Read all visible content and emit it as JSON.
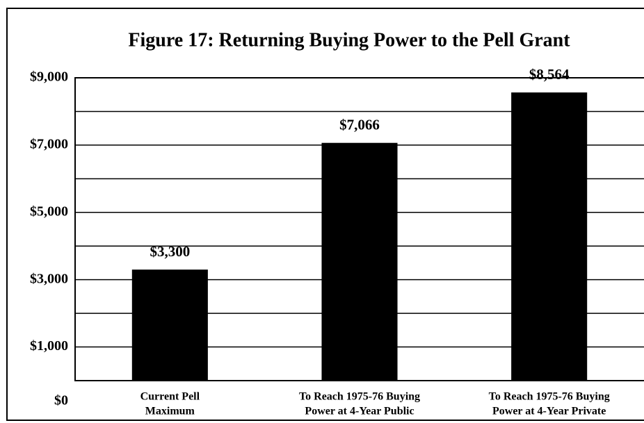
{
  "chart_data": {
    "type": "bar",
    "title": "Figure 17: Returning Buying Power to the Pell Grant",
    "categories": [
      [
        "Current Pell",
        "Maximum"
      ],
      [
        "To Reach 1975-76 Buying",
        "Power at 4-Year Public"
      ],
      [
        "To Reach 1975-76 Buying",
        "Power at 4-Year Private"
      ]
    ],
    "values": [
      3300,
      7066,
      8564
    ],
    "value_labels": [
      "$3,300",
      "$7,066",
      "$8,564"
    ],
    "color": "#000000",
    "ylim": [
      0,
      9000
    ],
    "yticks": [
      {
        "value": 0,
        "label": "$0"
      },
      {
        "value": 1000,
        "label": "$1,000"
      },
      {
        "value": 3000,
        "label": "$3,000"
      },
      {
        "value": 5000,
        "label": "$5,000"
      },
      {
        "value": 7000,
        "label": "$7,000"
      },
      {
        "value": 9000,
        "label": "$9,000"
      }
    ],
    "minor_yticks": [
      2000,
      4000,
      6000,
      8000
    ],
    "grid": true
  }
}
